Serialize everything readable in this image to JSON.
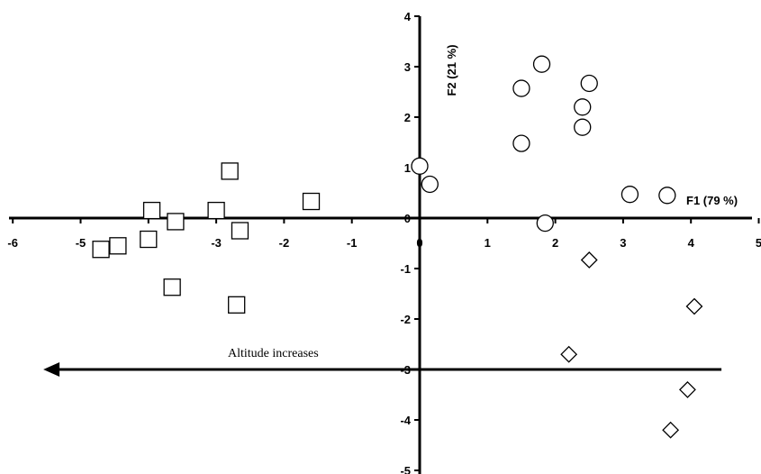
{
  "chart_data": {
    "type": "scatter",
    "xlabel": "F1 (79 %)",
    "ylabel": "F2 (21 %)",
    "xlim": [
      -6,
      5
    ],
    "ylim": [
      -5,
      4
    ],
    "x_ticks": [
      "-6",
      "-5",
      "-4",
      "-3",
      "-2",
      "-1",
      "0",
      "1",
      "2",
      "3",
      "4",
      "5"
    ],
    "y_ticks": [
      "4",
      "3",
      "2",
      "1",
      "0",
      "-1",
      "-2",
      "-3",
      "-4",
      "-5"
    ],
    "grid": false,
    "annotation": {
      "text": "Altitude increases",
      "arrow_from": [
        4.45,
        -3.0
      ],
      "arrow_to": [
        -5.55,
        -3.0
      ]
    },
    "series": [
      {
        "marker": "square",
        "points": [
          [
            -4.45,
            -0.55
          ],
          [
            -4.7,
            -0.62
          ],
          [
            -3.95,
            0.15
          ],
          [
            -4.0,
            -0.42
          ],
          [
            -3.6,
            -0.07
          ],
          [
            -3.65,
            -1.37
          ],
          [
            -2.8,
            0.93
          ],
          [
            -3.0,
            0.15
          ],
          [
            -2.65,
            -0.25
          ],
          [
            -2.7,
            -1.72
          ],
          [
            -1.6,
            0.33
          ]
        ]
      },
      {
        "marker": "circle",
        "points": [
          [
            1.8,
            3.05
          ],
          [
            1.5,
            2.57
          ],
          [
            2.5,
            2.67
          ],
          [
            2.4,
            2.2
          ],
          [
            2.4,
            1.8
          ],
          [
            1.5,
            1.48
          ],
          [
            0.0,
            1.03
          ],
          [
            0.15,
            0.67
          ],
          [
            3.1,
            0.47
          ],
          [
            3.65,
            0.45
          ],
          [
            1.85,
            -0.1
          ]
        ]
      },
      {
        "marker": "diamond",
        "points": [
          [
            2.5,
            -0.83
          ],
          [
            4.05,
            -1.75
          ],
          [
            2.2,
            -2.7
          ],
          [
            3.95,
            -3.4
          ],
          [
            3.7,
            -4.2
          ]
        ]
      }
    ]
  }
}
